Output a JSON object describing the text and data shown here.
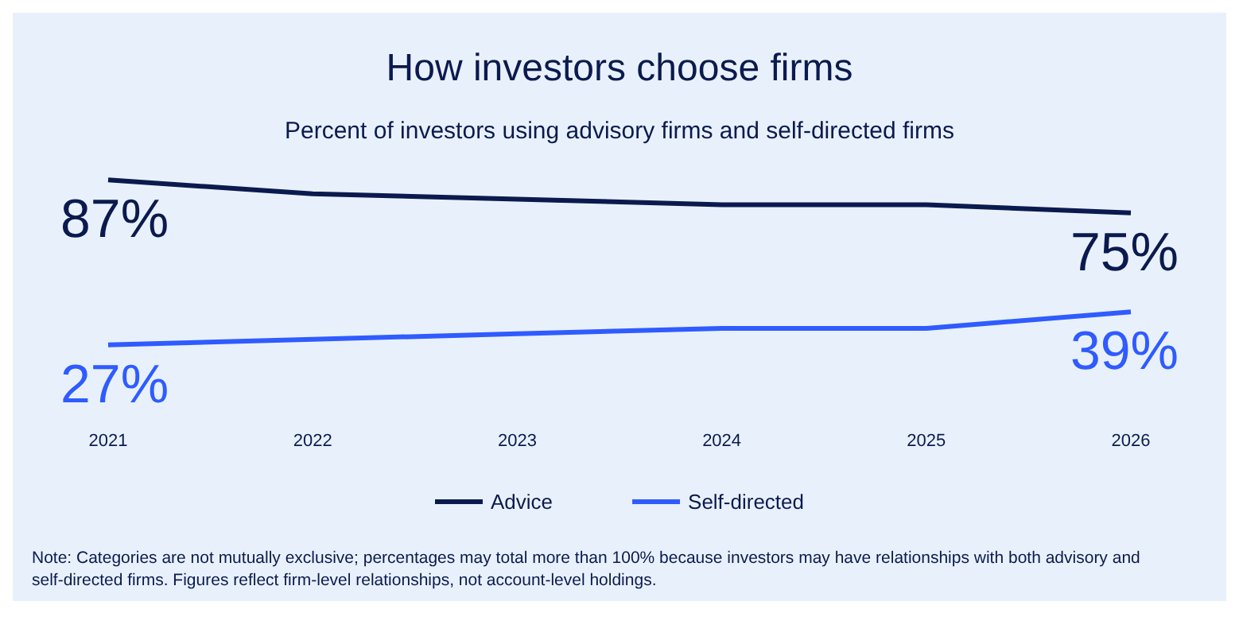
{
  "chart_data": {
    "type": "line",
    "title": "How investors choose firms",
    "subtitle": "Percent of investors using advisory firms and self-directed firms",
    "categories": [
      "2021",
      "2022",
      "2023",
      "2024",
      "2025",
      "2026"
    ],
    "series": [
      {
        "name": "Advice",
        "color": "#0b1a4e",
        "values": [
          87,
          82,
          80,
          78,
          78,
          75
        ],
        "value_labels": [
          "87%",
          null,
          null,
          null,
          null,
          "75%"
        ]
      },
      {
        "name": "Self-directed",
        "color": "#2f5bff",
        "values": [
          27,
          29,
          31,
          33,
          33,
          39
        ],
        "value_labels": [
          "27%",
          null,
          null,
          null,
          null,
          "39%"
        ]
      }
    ],
    "legend": "bottom",
    "marker": "none",
    "grid": false,
    "annotations": [
      "Note: Categories are not mutually exclusive; percentages may total more than 100% because investors may have relationships with both advisory and self-directed firms. Figures reflect firm-level relationships, not account-level holdings."
    ]
  }
}
